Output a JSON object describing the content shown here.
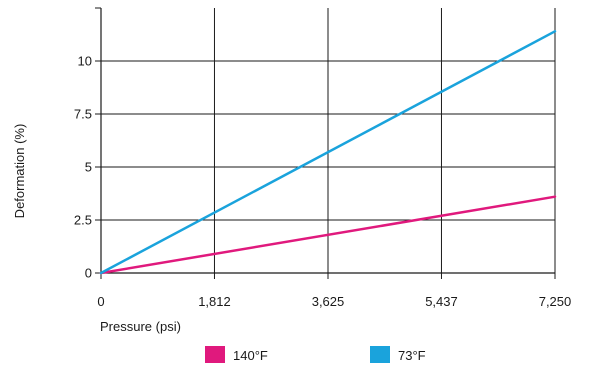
{
  "chart_data": {
    "type": "line",
    "xlabel": "Pressure (psi)",
    "ylabel": "Deformation (%)",
    "xlim": [
      0,
      7250
    ],
    "ylim": [
      0,
      12.5
    ],
    "x_ticks": [
      0,
      1812,
      3625,
      5437,
      7250
    ],
    "x_tick_labels": [
      "0",
      "1,812",
      "3,625",
      "5,437",
      "7,250"
    ],
    "y_ticks": [
      0,
      2.5,
      5,
      7.5,
      10
    ],
    "y_tick_labels": [
      "0",
      "2.5",
      "5",
      "7.5",
      "10"
    ],
    "grid": true,
    "legend_position": "bottom",
    "series": [
      {
        "name": "140°F",
        "color": "#e0197d",
        "x": [
          0,
          7250
        ],
        "y": [
          0,
          3.6
        ]
      },
      {
        "name": "73°F",
        "color": "#1aa3dc",
        "x": [
          0,
          7250
        ],
        "y": [
          0,
          11.4
        ]
      }
    ]
  }
}
